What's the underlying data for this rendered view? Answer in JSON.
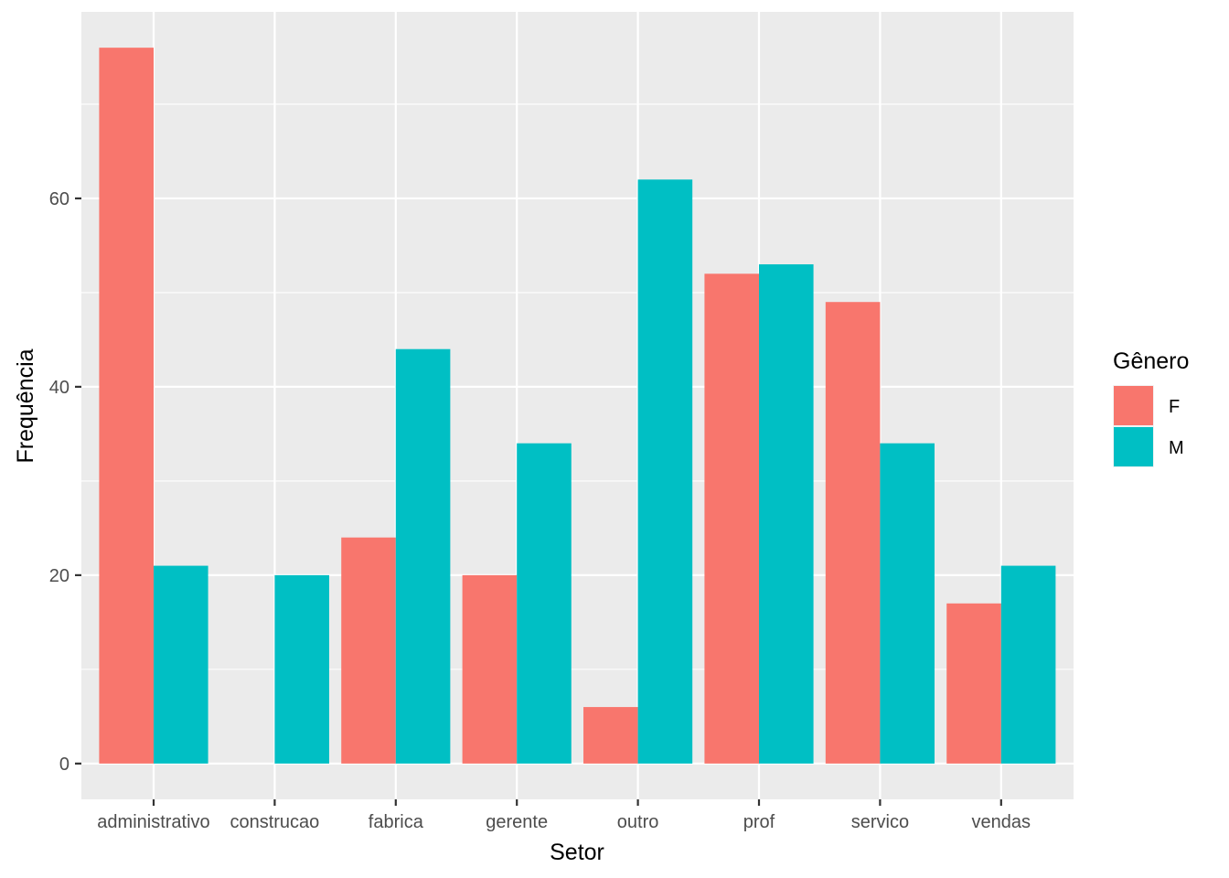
{
  "chart_data": {
    "type": "bar",
    "title": "",
    "xlabel": "Setor",
    "ylabel": "Frequência",
    "categories": [
      "administrativo",
      "construcao",
      "fabrica",
      "gerente",
      "outro",
      "prof",
      "servico",
      "vendas"
    ],
    "series": [
      {
        "name": "F",
        "color": "#F8766D",
        "values": [
          76,
          null,
          24,
          20,
          6,
          52,
          49,
          17
        ]
      },
      {
        "name": "M",
        "color": "#00BFC4",
        "values": [
          21,
          20,
          44,
          34,
          62,
          53,
          34,
          21
        ]
      }
    ],
    "ylim": [
      -3.8,
      79.8
    ],
    "yticks": [
      0,
      20,
      40,
      60
    ],
    "ytick_labels": [
      "0",
      "20",
      "40",
      "60"
    ],
    "grid": true,
    "panel_background": "#EBEBEB",
    "grid_color": "#FFFFFF",
    "legend": {
      "title": "Gênero",
      "placement": "right",
      "entries": [
        "F",
        "M"
      ]
    }
  }
}
